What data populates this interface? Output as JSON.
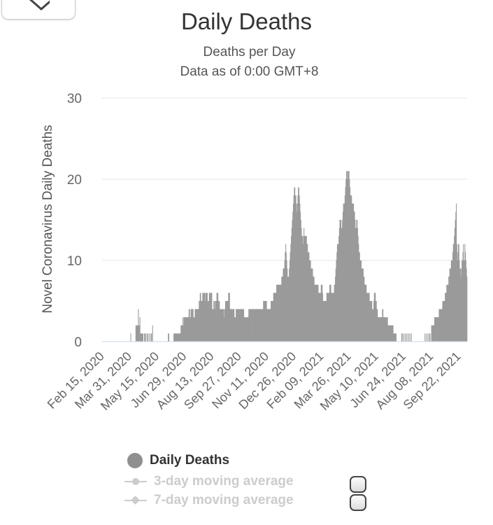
{
  "chart_data": {
    "type": "bar",
    "title": "Daily Deaths",
    "subtitle_lines": [
      "Deaths per Day",
      "Data as of 0:00 GMT+8"
    ],
    "ylabel": "Novel Coronavirus Daily Deaths",
    "xlabel": "",
    "ylim": [
      0,
      30
    ],
    "yticks": [
      0,
      10,
      20,
      30
    ],
    "grid": true,
    "start_date": "2020-02-15",
    "end_date": "2021-10-06",
    "xtick_labels": [
      "Feb 15, 2020",
      "Mar 31, 2020",
      "May 15, 2020",
      "Jun 29, 2020",
      "Aug 13, 2020",
      "Sep 27, 2020",
      "Nov 11, 2020",
      "Dec 26, 2020",
      "Feb 09, 2021",
      "Mar 26, 2021",
      "May 10, 2021",
      "Jun 24, 2021",
      "Aug 08, 2021",
      "Sep 22, 2021"
    ],
    "series": [
      {
        "name": "Daily Deaths",
        "color": "#9a9a9a",
        "values": [
          0,
          0,
          0,
          0,
          0,
          0,
          0,
          0,
          0,
          0,
          0,
          0,
          0,
          0,
          0,
          0,
          0,
          0,
          0,
          0,
          0,
          0,
          0,
          0,
          0,
          0,
          0,
          0,
          0,
          0,
          0,
          0,
          0,
          0,
          0,
          0,
          0,
          0,
          0,
          0,
          0,
          0,
          0,
          0,
          0,
          0,
          0,
          0,
          0,
          0,
          0,
          0,
          0,
          0,
          0,
          0,
          1,
          0,
          0,
          0,
          0,
          0,
          0,
          0,
          0,
          0,
          2,
          2,
          2,
          2,
          2,
          4,
          2,
          2,
          3,
          1,
          1,
          1,
          1,
          1,
          1,
          0,
          0,
          1,
          1,
          1,
          0,
          0,
          1,
          0,
          1,
          0,
          0,
          1,
          0,
          0,
          1,
          1,
          0,
          2,
          0,
          0,
          0,
          0,
          0,
          0,
          0,
          0,
          0,
          0,
          0,
          0,
          0,
          0,
          0,
          0,
          0,
          0,
          0,
          0,
          0,
          0,
          0,
          0,
          0,
          0,
          0,
          0,
          0,
          0,
          1,
          1,
          0,
          0,
          0,
          0,
          0,
          0,
          0,
          0,
          0,
          1,
          1,
          1,
          1,
          1,
          1,
          1,
          1,
          1,
          1,
          1,
          1,
          1,
          1,
          2,
          2,
          2,
          2,
          3,
          2,
          3,
          3,
          3,
          3,
          3,
          3,
          3,
          3,
          3,
          3,
          4,
          4,
          3,
          3,
          4,
          4,
          4,
          4,
          4,
          3,
          3,
          3,
          4,
          4,
          4,
          4,
          4,
          4,
          4,
          4,
          5,
          5,
          6,
          6,
          5,
          5,
          5,
          6,
          6,
          6,
          6,
          6,
          5,
          6,
          6,
          6,
          6,
          5,
          5,
          5,
          6,
          6,
          6,
          6,
          6,
          6,
          4,
          4,
          4,
          5,
          5,
          4,
          5,
          5,
          5,
          6,
          6,
          6,
          5,
          5,
          5,
          4,
          4,
          4,
          4,
          4,
          4,
          4,
          4,
          3,
          4,
          4,
          5,
          5,
          5,
          5,
          5,
          5,
          6,
          6,
          6,
          4,
          4,
          4,
          4,
          4,
          4,
          4,
          4,
          4,
          3,
          3,
          3,
          4,
          4,
          4,
          4,
          4,
          4,
          4,
          4,
          4,
          4,
          4,
          4,
          4,
          4,
          4,
          4,
          3,
          3,
          3,
          3,
          3,
          3,
          3,
          3,
          3,
          4,
          4,
          4,
          4,
          4,
          4,
          4,
          4,
          4,
          4,
          4,
          4,
          4,
          4,
          4,
          4,
          4,
          4,
          4,
          4,
          4,
          4,
          4,
          4,
          4,
          4,
          4,
          4,
          4,
          5,
          5,
          5,
          5,
          5,
          5,
          5,
          4,
          4,
          4,
          4,
          4,
          4,
          4,
          4,
          5,
          5,
          5,
          5,
          5,
          6,
          6,
          6,
          6,
          6,
          6,
          7,
          7,
          7,
          7,
          7,
          7,
          7,
          7,
          7,
          7,
          8,
          8,
          8,
          9,
          9,
          9,
          10,
          11,
          12,
          11,
          10,
          9,
          8,
          8,
          8,
          9,
          10,
          11,
          12,
          13,
          14,
          15,
          16,
          17,
          18,
          19,
          19,
          18,
          18,
          17,
          16,
          17,
          18,
          19,
          19,
          18,
          17,
          16,
          15,
          14,
          13,
          13,
          12,
          13,
          14,
          13,
          13,
          13,
          13,
          13,
          12,
          12,
          11,
          11,
          11,
          10,
          10,
          10,
          9,
          9,
          9,
          9,
          8,
          8,
          8,
          7,
          7,
          7,
          7,
          7,
          7,
          7,
          7,
          6,
          6,
          6,
          6,
          6,
          7,
          7,
          7,
          6,
          5,
          5,
          5,
          5,
          5,
          5,
          5,
          6,
          6,
          6,
          6,
          6,
          6,
          7,
          7,
          7,
          6,
          6,
          6,
          6,
          6,
          6,
          7,
          7,
          8,
          9,
          10,
          11,
          12,
          12,
          12,
          13,
          14,
          15,
          15,
          15,
          14,
          14,
          15,
          16,
          17,
          17,
          17,
          18,
          19,
          20,
          21,
          21,
          20,
          21,
          21,
          21,
          20,
          19,
          18,
          18,
          18,
          17,
          17,
          17,
          17,
          16,
          16,
          15,
          14,
          14,
          15,
          15,
          14,
          13,
          12,
          11,
          11,
          10,
          10,
          10,
          9,
          9,
          9,
          9,
          8,
          8,
          7,
          7,
          7,
          7,
          6,
          6,
          6,
          6,
          6,
          6,
          5,
          5,
          5,
          5,
          5,
          4,
          4,
          4,
          5,
          6,
          6,
          6,
          5,
          5,
          4,
          4,
          3,
          3,
          3,
          3,
          3,
          3,
          3,
          3,
          3,
          4,
          4,
          3,
          3,
          3,
          3,
          3,
          3,
          3,
          3,
          3,
          2,
          2,
          2,
          2,
          2,
          2,
          2,
          2,
          2,
          2,
          2,
          1,
          1,
          1,
          1,
          1,
          1,
          0,
          0,
          0,
          0,
          0,
          0,
          0,
          0,
          0,
          0,
          1,
          1,
          0,
          0,
          1,
          0,
          0,
          1,
          0,
          0,
          1,
          0,
          0,
          1,
          0,
          0,
          1,
          0,
          0,
          1,
          0,
          0,
          0,
          0,
          0,
          0,
          0,
          0,
          0,
          0,
          0,
          0,
          0,
          0,
          0,
          0,
          0,
          0,
          0,
          0,
          0,
          0,
          0,
          0,
          0,
          0,
          1,
          0,
          0,
          1,
          0,
          0,
          1,
          0,
          0,
          1,
          1,
          0,
          0,
          2,
          2,
          2,
          2,
          2,
          2,
          3,
          3,
          3,
          3,
          3,
          3,
          3,
          3,
          3,
          4,
          4,
          4,
          4,
          4,
          4,
          4,
          5,
          5,
          5,
          5,
          5,
          6,
          6,
          6,
          7,
          7,
          7,
          7,
          8,
          8,
          9,
          9,
          9,
          10,
          10,
          10,
          11,
          12,
          12,
          13,
          14,
          15,
          16,
          17,
          12,
          10,
          11,
          12,
          12,
          10,
          9,
          9,
          8,
          9,
          10,
          10,
          11,
          12,
          10,
          10,
          12,
          11,
          10,
          9,
          8
        ]
      },
      {
        "name": "3-day moving average",
        "visible": false
      },
      {
        "name": "7-day moving average",
        "visible": false
      }
    ]
  },
  "ui": {
    "close_icon": "close-icon",
    "legend_title_active": "Daily Deaths",
    "legend_3day": "3-day moving average",
    "legend_7day": "7-day moving average"
  },
  "colors": {
    "bar": "#9a9a9a",
    "grid": "#e6e6e6",
    "axis": "#ccd6eb",
    "text": "#666666",
    "inactive": "#cccccc"
  }
}
